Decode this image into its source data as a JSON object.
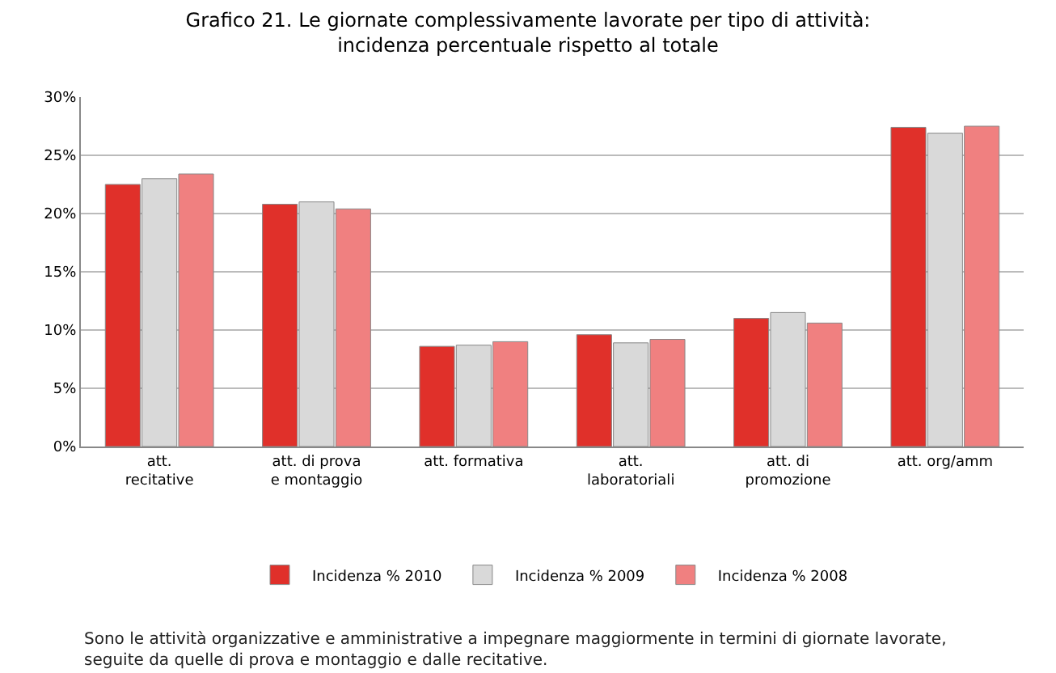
{
  "chart_data": {
    "type": "bar",
    "title": "Grafico 21. Le giornate complessivamente lavorate per tipo di attività: incidenza percentuale rispetto al totale",
    "categories": [
      "att. recitative",
      "att. di prova e montaggio",
      "att. formativa",
      "att. laboratoriali",
      "att. di promozione",
      "att. org/amm"
    ],
    "series": [
      {
        "name": "Incidenza % 2010",
        "color": "#e0302a",
        "values": [
          22.5,
          20.8,
          8.6,
          9.6,
          11.0,
          27.4
        ]
      },
      {
        "name": "Incidenza % 2009",
        "color": "#d9d9d9",
        "values": [
          23.0,
          21.0,
          8.7,
          8.9,
          11.5,
          26.9
        ]
      },
      {
        "name": "Incidenza % 2008",
        "color": "#f08080",
        "values": [
          23.4,
          20.4,
          9.0,
          9.2,
          10.6,
          27.5
        ]
      }
    ],
    "ylim": [
      0,
      30
    ],
    "yticks": [
      {
        "value": 0,
        "label": "0%"
      },
      {
        "value": 5,
        "label": "5%"
      },
      {
        "value": 10,
        "label": "10%"
      },
      {
        "value": 15,
        "label": "15%"
      },
      {
        "value": 20,
        "label": "20%"
      },
      {
        "value": 25,
        "label": "25%"
      },
      {
        "value": 30,
        "label": "30%"
      }
    ],
    "grid": "y",
    "legend": "bottom",
    "annotations": [
      "Sono le attività organizzative e amministrative a impegnare maggiormente in termini di giornate lavorate, seguite da quelle di prova e montaggio e dalle recitative."
    ]
  }
}
